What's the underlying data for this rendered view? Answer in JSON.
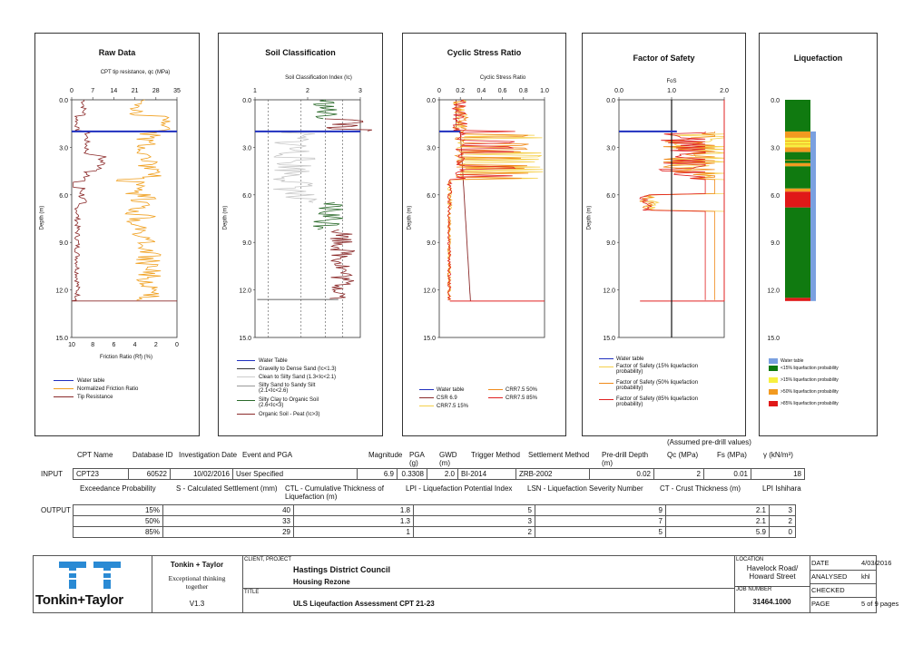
{
  "panels": {
    "raw": {
      "title": "Raw Data",
      "top_axis_label": "CPT tip resistance, qc (MPa)",
      "top_ticks": [
        "0",
        "7",
        "14",
        "21",
        "28",
        "35"
      ],
      "bottom_ticks": [
        "10",
        "8",
        "6",
        "4",
        "2",
        "0"
      ],
      "bottom_axis_label": "Friction Ratio (Rf) (%)",
      "legend": [
        "Water table",
        "Normalized Friction Ratio",
        "Tip Resistance"
      ]
    },
    "soil": {
      "title": "Soil Classification",
      "top_axis_label": "Soil Classification Index (Ic)",
      "top_ticks": [
        "1",
        "2",
        "3"
      ],
      "legend": [
        "Water Table",
        "Gravelly to Dense Sand (Ic<1.3)",
        "Clean to Silty Sand (1.3<Ic<2.1)",
        "Silty Sand to Sandy Silt (2.1<Ic<2.6)",
        "Silty Clay to Organic Soil (2.6<Ic<3)",
        "Organic Soil - Peat (Ic>3)"
      ]
    },
    "csr": {
      "title": "Cyclic Stress Ratio",
      "top_axis_label": "Cyclic Stress Ratio",
      "top_ticks": [
        "0",
        "0.2",
        "0.4",
        "0.6",
        "0.8",
        "1.0"
      ],
      "legend": [
        "Water table",
        "CSR 6.9",
        "CRR7.5 15%",
        "CRR7.5 50%",
        "CRR7.5 85%"
      ]
    },
    "fos": {
      "title": "Factor of Safety",
      "top_axis_label": "FoS",
      "top_ticks": [
        "0.0",
        "1.0",
        "2.0"
      ],
      "legend": [
        "Water table",
        "Factor of Safety (15% liquefaction probability)",
        "Factor of Safety (50% liquefaction probability)",
        "Factor of Safety (85% liquefaction probability)"
      ]
    },
    "liq": {
      "title": "Liquefaction",
      "legend": [
        "Water table",
        "<15% liquefaction probability",
        ">15% liquefaction probability",
        ">50% liquefaction probability",
        ">85% liquefaction probability"
      ]
    }
  },
  "depth_axis": {
    "label": "Depth (m)",
    "ticks": [
      "0.0",
      "3.0",
      "6.0",
      "9.0",
      "12.0",
      "15.0"
    ]
  },
  "chart_data": {
    "type": "line",
    "depth_range": [
      0,
      15
    ],
    "water_table_depth": 2.0,
    "base_depth": 12.7,
    "fos_threshold": 1.0,
    "liquefaction_bands": [
      {
        "from": 0.0,
        "to": 2.0,
        "class": "<15%"
      },
      {
        "from": 2.0,
        "to": 2.4,
        "class": ">50%"
      },
      {
        "from": 2.4,
        "to": 3.0,
        "class": ">15%"
      },
      {
        "from": 3.0,
        "to": 3.3,
        "class": ">50%"
      },
      {
        "from": 3.3,
        "to": 4.0,
        "class": "<15%"
      },
      {
        "from": 4.0,
        "to": 4.2,
        "class": ">50%"
      },
      {
        "from": 4.2,
        "to": 5.6,
        "class": "<15%"
      },
      {
        "from": 5.6,
        "to": 5.8,
        "class": ">50%"
      },
      {
        "from": 5.8,
        "to": 6.8,
        "class": ">85%"
      },
      {
        "from": 6.8,
        "to": 12.5,
        "class": "<15%"
      },
      {
        "from": 12.5,
        "to": 12.7,
        "class": ">85%"
      }
    ]
  },
  "colors": {
    "water": "#1f2fbf",
    "tip": "#8b2a2a",
    "friction": "#f0a020",
    "csr": "#8b2a2a",
    "crr15": "#f5d04a",
    "crr50": "#f08a1a",
    "crr85": "#e02020",
    "liq_lt15": "#107a10",
    "liq_gt15": "#f7f040",
    "liq_gt50": "#f29a20",
    "liq_gt85": "#e01818",
    "water_bar": "#7aa0e0"
  },
  "assumed_label": "(Assumed pre-drill values)",
  "input": {
    "headers": [
      "CPT Name",
      "Database ID",
      "Investigation Date",
      "Event and PGA",
      "Magnitude",
      "PGA (g)",
      "GWD (m)",
      "Trigger Method",
      "Settlement Method",
      "Pre-drill Depth (m)",
      "Qc (MPa)",
      "Fs (MPa)",
      "γ (kN/m³)"
    ],
    "row_label": "INPUT",
    "values": [
      "CPT23",
      "60522",
      "10/02/2016",
      "User Specified",
      "6.9",
      "0.3308",
      "2.0",
      "BI-2014",
      "ZRB-2002",
      "0.02",
      "2",
      "0.01",
      "18"
    ]
  },
  "output": {
    "headers": [
      "Exceedance Probability",
      "S - Calculated Settlement (mm)",
      "CTL - Cumulative Thickness of Liquefaction (m)",
      "LPI - Liquefaction Potential Index",
      "LSN - Liquefaction Severity Number",
      "CT - Crust Thickness (m)",
      "LPI Ishihara"
    ],
    "row_label": "OUTPUT",
    "rows": [
      [
        "15%",
        "40",
        "1.8",
        "5",
        "9",
        "2.1",
        "3"
      ],
      [
        "50%",
        "33",
        "1.3",
        "3",
        "7",
        "2.1",
        "2"
      ],
      [
        "85%",
        "29",
        "1",
        "2",
        "5",
        "5.9",
        "0"
      ]
    ]
  },
  "title_block": {
    "company": "Tonkin + Taylor",
    "tagline": "Exceptional thinking together",
    "version": "V1.3",
    "logo_text": "Tonkin+Taylor",
    "client_label": "CLIENT, PROJECT",
    "client": "Hastings District Council",
    "project": "Housing Rezone",
    "title_label": "TITLE",
    "title": "ULS Liqeufaction Assessment CPT 21-23",
    "location_label": "LOCATION",
    "location": "Havelock Road/ Howard Street",
    "job_label": "JOB NUMBER",
    "job": "31464.1000",
    "date_label": "DATE",
    "date": "4/03/2016",
    "analysed_label": "ANALYSED",
    "analysed": "khl",
    "checked_label": "CHECKED",
    "checked": "",
    "page_label": "PAGE",
    "page": "5 of 9 pages"
  }
}
